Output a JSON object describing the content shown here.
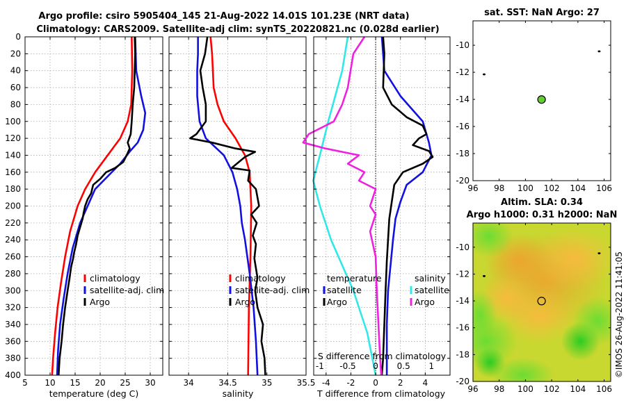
{
  "figure": {
    "title_line1": "Argo profile: csiro 5905404_145 21-Aug-2022 14.01S 101.23E (NRT data)",
    "title_line2": "Climatology: CARS2009. Satellite-adj clim: synTS_20220821.nc (0.028d earlier)",
    "credit": "©IMOS 26-Aug-2022 11:41:05"
  },
  "colors": {
    "climatology": "#ff0000",
    "satellite": "#1010e0",
    "argo": "#000000",
    "satellite_salinity": "#30e8e8",
    "argo_salinity": "#f020e0",
    "marker_fill": "#66cc33"
  },
  "chart_data": [
    {
      "id": "temperature",
      "type": "line",
      "xlabel": "temperature (deg C)",
      "ylabel": "depth",
      "xlim": [
        5,
        32.5
      ],
      "ylim": [
        400,
        0
      ],
      "xticks": [
        "5",
        "10",
        "15",
        "20",
        "25",
        "30"
      ],
      "xtick_values": [
        5,
        10,
        15,
        20,
        25,
        30
      ],
      "yticks": [
        "0",
        "20",
        "40",
        "60",
        "80",
        "100",
        "120",
        "140",
        "160",
        "180",
        "200",
        "220",
        "240",
        "260",
        "280",
        "300",
        "320",
        "340",
        "360",
        "380",
        "400"
      ],
      "ytick_values": [
        0,
        20,
        40,
        60,
        80,
        100,
        120,
        140,
        160,
        180,
        200,
        220,
        240,
        260,
        280,
        300,
        320,
        340,
        360,
        380,
        400
      ],
      "grid": true,
      "legend": [
        "climatology",
        "satellite-adj. clim",
        "Argo"
      ],
      "series": [
        {
          "name": "climatology",
          "color_key": "climatology",
          "points": [
            [
              26.3,
              0
            ],
            [
              26.4,
              40
            ],
            [
              26.2,
              80
            ],
            [
              25.5,
              100
            ],
            [
              24.0,
              120
            ],
            [
              21.5,
              140
            ],
            [
              19.0,
              160
            ],
            [
              17.0,
              180
            ],
            [
              15.5,
              200
            ],
            [
              14.0,
              230
            ],
            [
              13.0,
              260
            ],
            [
              12.2,
              290
            ],
            [
              11.5,
              320
            ],
            [
              11.0,
              350
            ],
            [
              10.6,
              380
            ],
            [
              10.4,
              400
            ]
          ]
        },
        {
          "name": "satellite-adj. clim",
          "color_key": "satellite",
          "points": [
            [
              27.0,
              0
            ],
            [
              27.2,
              40
            ],
            [
              28.2,
              70
            ],
            [
              29.0,
              90
            ],
            [
              28.6,
              110
            ],
            [
              27.5,
              125
            ],
            [
              26.0,
              135
            ],
            [
              24.0,
              150
            ],
            [
              21.5,
              165
            ],
            [
              19.0,
              180
            ],
            [
              17.5,
              200
            ],
            [
              16.0,
              220
            ],
            [
              14.5,
              250
            ],
            [
              13.5,
              280
            ],
            [
              12.7,
              310
            ],
            [
              12.0,
              340
            ],
            [
              11.6,
              370
            ],
            [
              11.4,
              400
            ]
          ]
        },
        {
          "name": "Argo",
          "color_key": "argo",
          "points": [
            [
              26.9,
              0
            ],
            [
              27.0,
              20
            ],
            [
              26.8,
              60
            ],
            [
              26.5,
              80
            ],
            [
              26.3,
              100
            ],
            [
              26.1,
              115
            ],
            [
              25.5,
              125
            ],
            [
              25.9,
              132
            ],
            [
              25.3,
              140
            ],
            [
              24.6,
              148
            ],
            [
              23.0,
              155
            ],
            [
              21.2,
              160
            ],
            [
              20.0,
              168
            ],
            [
              18.6,
              175
            ],
            [
              18.2,
              185
            ],
            [
              17.5,
              192
            ],
            [
              17.0,
              200
            ],
            [
              16.7,
              208
            ],
            [
              16.5,
              215
            ],
            [
              16.0,
              225
            ],
            [
              15.5,
              235
            ],
            [
              15.2,
              245
            ],
            [
              14.8,
              255
            ],
            [
              14.6,
              262
            ],
            [
              14.2,
              272
            ],
            [
              13.9,
              285
            ],
            [
              13.5,
              300
            ],
            [
              13.0,
              320
            ],
            [
              12.6,
              340
            ],
            [
              12.3,
              360
            ],
            [
              11.9,
              380
            ],
            [
              11.7,
              400
            ]
          ]
        }
      ]
    },
    {
      "id": "salinity",
      "type": "line",
      "xlabel": "salinity",
      "xlim": [
        33.75,
        35.5
      ],
      "ylim": [
        400,
        0
      ],
      "xticks": [
        "34",
        "34.5",
        "35",
        "35.5"
      ],
      "xtick_values": [
        34,
        34.5,
        35,
        35.5
      ],
      "grid": true,
      "legend": [
        "climatology",
        "satellite-adj. clim",
        "Argo"
      ],
      "series": [
        {
          "name": "climatology",
          "color_key": "climatology",
          "points": [
            [
              34.28,
              0
            ],
            [
              34.3,
              20
            ],
            [
              34.32,
              60
            ],
            [
              34.37,
              80
            ],
            [
              34.45,
              100
            ],
            [
              34.6,
              120
            ],
            [
              34.72,
              140
            ],
            [
              34.78,
              160
            ],
            [
              34.8,
              200
            ],
            [
              34.79,
              260
            ],
            [
              34.77,
              320
            ],
            [
              34.76,
              400
            ]
          ]
        },
        {
          "name": "satellite-adj. clim",
          "color_key": "satellite",
          "points": [
            [
              34.12,
              0
            ],
            [
              34.12,
              20
            ],
            [
              34.11,
              40
            ],
            [
              34.11,
              70
            ],
            [
              34.14,
              100
            ],
            [
              34.22,
              120
            ],
            [
              34.45,
              140
            ],
            [
              34.56,
              160
            ],
            [
              34.62,
              180
            ],
            [
              34.66,
              200
            ],
            [
              34.68,
              220
            ],
            [
              34.72,
              240
            ],
            [
              34.78,
              280
            ],
            [
              34.83,
              320
            ],
            [
              34.86,
              360
            ],
            [
              34.88,
              400
            ]
          ]
        },
        {
          "name": "Argo",
          "color_key": "argo",
          "points": [
            [
              34.24,
              0
            ],
            [
              34.21,
              20
            ],
            [
              34.15,
              40
            ],
            [
              34.18,
              60
            ],
            [
              34.22,
              80
            ],
            [
              34.22,
              100
            ],
            [
              34.1,
              115
            ],
            [
              34.02,
              120
            ],
            [
              34.3,
              125
            ],
            [
              34.6,
              132
            ],
            [
              34.85,
              136
            ],
            [
              34.72,
              142
            ],
            [
              34.55,
              155
            ],
            [
              34.78,
              158
            ],
            [
              34.76,
              170
            ],
            [
              34.86,
              180
            ],
            [
              34.9,
              200
            ],
            [
              34.8,
              210
            ],
            [
              34.87,
              220
            ],
            [
              34.82,
              235
            ],
            [
              34.86,
              245
            ],
            [
              34.84,
              262
            ],
            [
              34.88,
              285
            ],
            [
              34.85,
              300
            ],
            [
              34.88,
              320
            ],
            [
              34.95,
              340
            ],
            [
              34.93,
              360
            ],
            [
              34.97,
              380
            ],
            [
              34.98,
              400
            ]
          ]
        }
      ]
    },
    {
      "id": "difference",
      "type": "line",
      "xlabel": "T difference from climatology",
      "xlabel_top": "S difference from climatology",
      "xlim": [
        -5,
        6
      ],
      "ylim": [
        400,
        0
      ],
      "xticks": [
        "-4",
        "-2",
        "0",
        "2",
        "4"
      ],
      "xtick_values": [
        -4,
        -2,
        0,
        2,
        4
      ],
      "sticks": [
        "-1",
        "-0.5",
        "0",
        "0.5",
        "1"
      ],
      "stick_values": [
        -1,
        -0.5,
        0,
        0.5,
        1
      ],
      "grid": true,
      "legend_title_left": "temperature",
      "legend_title_right": "salinity",
      "legend_left": [
        "satellite",
        "Argo"
      ],
      "legend_right": [
        "satellite",
        "Argo"
      ],
      "series": [
        {
          "name": "temperature satellite",
          "color_key": "satellite",
          "points": [
            [
              0.5,
              0
            ],
            [
              0.7,
              40
            ],
            [
              2.0,
              70
            ],
            [
              3.8,
              100
            ],
            [
              4.3,
              125
            ],
            [
              4.5,
              140
            ],
            [
              3.8,
              160
            ],
            [
              2.5,
              175
            ],
            [
              2.0,
              195
            ],
            [
              1.6,
              215
            ],
            [
              1.4,
              240
            ],
            [
              1.2,
              270
            ],
            [
              1.0,
              300
            ],
            [
              0.9,
              340
            ],
            [
              0.9,
              380
            ],
            [
              0.9,
              400
            ]
          ]
        },
        {
          "name": "temperature Argo",
          "color_key": "argo",
          "points": [
            [
              0.6,
              0
            ],
            [
              0.7,
              20
            ],
            [
              0.6,
              60
            ],
            [
              1.3,
              80
            ],
            [
              2.5,
              95
            ],
            [
              3.8,
              105
            ],
            [
              4.1,
              115
            ],
            [
              3.5,
              120
            ],
            [
              3.0,
              128
            ],
            [
              4.3,
              135
            ],
            [
              4.6,
              142
            ],
            [
              3.8,
              150
            ],
            [
              2.2,
              160
            ],
            [
              1.5,
              175
            ],
            [
              1.3,
              195
            ],
            [
              1.1,
              215
            ],
            [
              1.0,
              240
            ],
            [
              0.9,
              265
            ],
            [
              0.8,
              300
            ],
            [
              0.7,
              340
            ],
            [
              0.6,
              380
            ],
            [
              0.5,
              400
            ]
          ]
        },
        {
          "name": "salinity satellite",
          "color_key": "satellite_salinity",
          "points": [
            [
              -0.5,
              0
            ],
            [
              -0.6,
              40
            ],
            [
              -0.85,
              100
            ],
            [
              -1.0,
              140
            ],
            [
              -1.12,
              170
            ],
            [
              -1.0,
              200
            ],
            [
              -0.8,
              240
            ],
            [
              -0.4,
              300
            ],
            [
              -0.15,
              350
            ],
            [
              0.0,
              400
            ]
          ]
        },
        {
          "name": "salinity Argo",
          "color_key": "argo_salinity",
          "points": [
            [
              -0.2,
              0
            ],
            [
              -0.4,
              20
            ],
            [
              -0.5,
              60
            ],
            [
              -0.6,
              80
            ],
            [
              -0.75,
              100
            ],
            [
              -1.2,
              115
            ],
            [
              -1.3,
              125
            ],
            [
              -0.9,
              132
            ],
            [
              -0.3,
              140
            ],
            [
              -0.5,
              150
            ],
            [
              -0.2,
              160
            ],
            [
              -0.3,
              170
            ],
            [
              0.0,
              180
            ],
            [
              -0.1,
              200
            ],
            [
              0.0,
              210
            ],
            [
              -0.1,
              230
            ],
            [
              0.0,
              260
            ],
            [
              0.02,
              300
            ],
            [
              0.05,
              340
            ],
            [
              0.08,
              380
            ],
            [
              0.1,
              400
            ]
          ]
        }
      ]
    },
    {
      "id": "sst_map",
      "type": "scatter",
      "title": "sat. SST: NaN Argo: 27",
      "xlim": [
        96,
        106.5
      ],
      "ylim": [
        -20,
        -8.2
      ],
      "xticks": [
        "96",
        "98",
        "100",
        "102",
        "104",
        "106"
      ],
      "xtick_values": [
        96,
        98,
        100,
        102,
        104,
        106
      ],
      "yticks": [
        "-10",
        "-12",
        "-14",
        "-16",
        "-18",
        "-20"
      ],
      "ytick_values": [
        -10,
        -12,
        -14,
        -16,
        -18,
        -20
      ],
      "argo_location": {
        "lon": 101.23,
        "lat": -14.01
      },
      "islands": [
        {
          "lon": 96.85,
          "lat": -12.15
        },
        {
          "lon": 105.62,
          "lat": -10.45
        }
      ]
    },
    {
      "id": "sla_map",
      "type": "heatmap",
      "title_line1": "Altim. SLA: 0.34",
      "title_line2": "Argo h1000: 0.31 h2000: NaN",
      "xlim": [
        96,
        106.5
      ],
      "ylim": [
        -20,
        -8.2
      ],
      "xticks": [
        "96",
        "98",
        "100",
        "102",
        "104",
        "106"
      ],
      "xtick_values": [
        96,
        98,
        100,
        102,
        104,
        106
      ],
      "yticks": [
        "-10",
        "-12",
        "-14",
        "-16",
        "-18",
        "-20"
      ],
      "ytick_values": [
        -10,
        -12,
        -14,
        -16,
        -18,
        -20
      ],
      "argo_location": {
        "lon": 101.23,
        "lat": -14.01
      },
      "islands": [
        {
          "lon": 96.85,
          "lat": -12.15
        },
        {
          "lon": 105.62,
          "lat": -10.45
        }
      ]
    }
  ]
}
